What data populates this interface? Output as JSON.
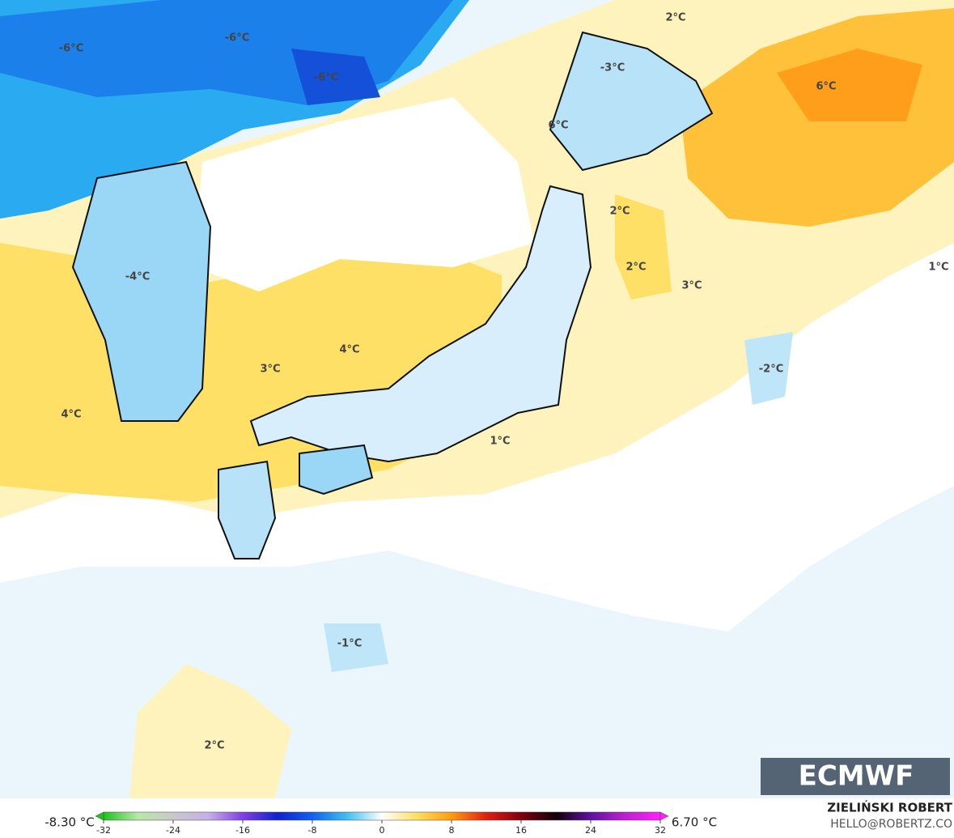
{
  "map": {
    "labels": [
      "2°C",
      "-6°C",
      "-6°C",
      "-6°C",
      "-3°C",
      "6°C",
      "6°C",
      "2°C",
      "2°C",
      "3°C",
      "1°C",
      "-4°C",
      "4°C",
      "3°C",
      "-2°C",
      "4°C",
      "1°C",
      "-1°C",
      "2°C"
    ],
    "logo": "ECMWF"
  },
  "colorbar": {
    "min_label": "-8.30 °C",
    "max_label": "6.70 °C",
    "lim": [
      -32,
      32
    ],
    "ticks": [
      -32,
      -24,
      -16,
      -8,
      0,
      8,
      16,
      24,
      32
    ],
    "stops": [
      {
        "value": -32,
        "color": "#1fc41f"
      },
      {
        "value": -28,
        "color": "#b8e8a8"
      },
      {
        "value": -24,
        "color": "#c8c8c8"
      },
      {
        "value": -20,
        "color": "#c8b0e8"
      },
      {
        "value": -16,
        "color": "#8040e0"
      },
      {
        "value": -12,
        "color": "#1020d0"
      },
      {
        "value": -8,
        "color": "#1060f0"
      },
      {
        "value": -4,
        "color": "#40c0f0"
      },
      {
        "value": 0,
        "color": "#ffffff"
      },
      {
        "value": 4,
        "color": "#ffe060"
      },
      {
        "value": 8,
        "color": "#ff9a10"
      },
      {
        "value": 12,
        "color": "#e02010"
      },
      {
        "value": 16,
        "color": "#800010"
      },
      {
        "value": 20,
        "color": "#100008"
      },
      {
        "value": 24,
        "color": "#6010a0"
      },
      {
        "value": 28,
        "color": "#c020d0"
      },
      {
        "value": 32,
        "color": "#ff20ff"
      }
    ]
  },
  "credit": {
    "author": "ZIELIŃSKI ROBERT",
    "site": "HELLO@ROBERTZ.CO"
  }
}
